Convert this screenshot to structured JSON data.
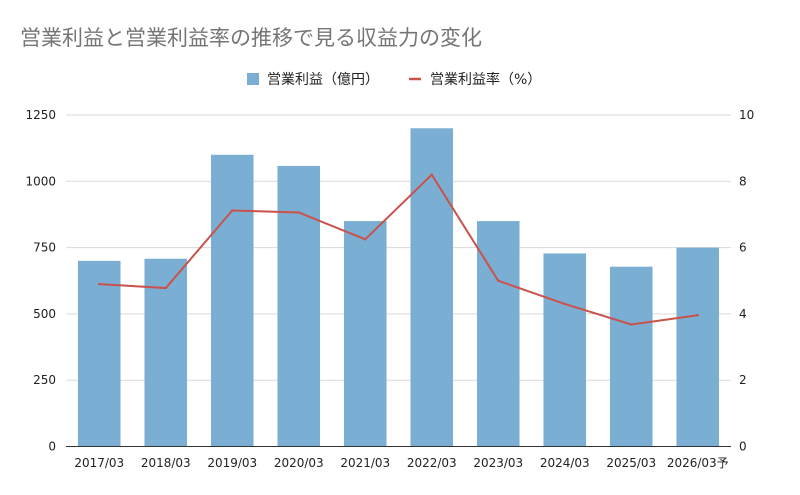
{
  "chart_data": {
    "type": "bar",
    "title": "営業利益と営業利益率の推移で見る収益力の変化",
    "categories": [
      "2017/03",
      "2018/03",
      "2019/03",
      "2020/03",
      "2021/03",
      "2022/03",
      "2023/03",
      "2024/03",
      "2025/03",
      "2026/03予"
    ],
    "series": [
      {
        "name": "営業利益（億円）",
        "type": "bar",
        "axis": "left",
        "color": "#7baed3",
        "values": [
          700,
          708,
          1100,
          1058,
          850,
          1200,
          850,
          728,
          678,
          750
        ]
      },
      {
        "name": "営業利益率（%）",
        "type": "line",
        "axis": "right",
        "color": "#c9524b",
        "values": [
          4.9,
          4.78,
          7.12,
          7.06,
          6.25,
          8.2,
          5.0,
          4.3,
          3.68,
          3.96
        ]
      }
    ],
    "y_left": {
      "min": 0,
      "max": 1250,
      "ticks": [
        0,
        250,
        500,
        750,
        1000,
        1250
      ]
    },
    "y_right": {
      "min": 0,
      "max": 10,
      "ticks": [
        0,
        2,
        4,
        6,
        8,
        10
      ]
    },
    "legend_position": "top-center",
    "grid": true
  }
}
